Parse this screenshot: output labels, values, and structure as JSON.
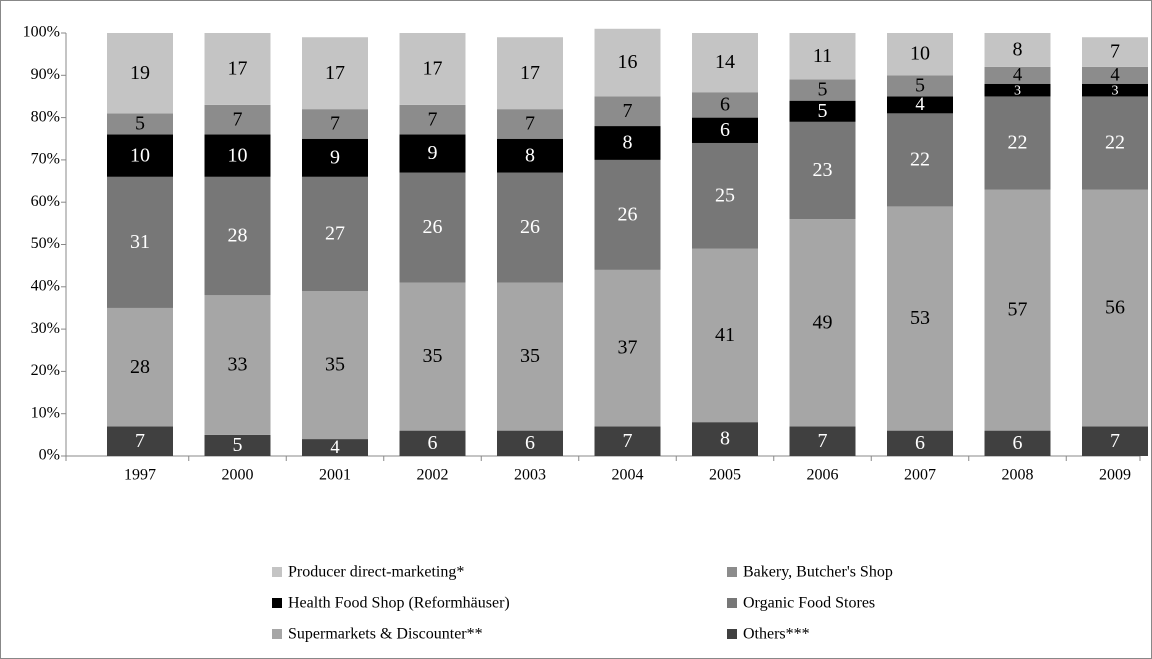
{
  "chart_data": {
    "type": "stacked_bar",
    "categories": [
      "1997",
      "2000",
      "2001",
      "2002",
      "2003",
      "2004",
      "2005",
      "2006",
      "2007",
      "2008",
      "2009"
    ],
    "series": [
      {
        "name": "Others***",
        "color": "#404040",
        "label_color": "#ffffff",
        "values": [
          7,
          5,
          4,
          6,
          6,
          7,
          8,
          7,
          6,
          6,
          7
        ]
      },
      {
        "name": "Supermarkets & Discounter**",
        "color": "#a6a6a6",
        "label_color": "#000000",
        "values": [
          28,
          33,
          35,
          35,
          35,
          37,
          41,
          49,
          53,
          57,
          56
        ]
      },
      {
        "name": "Organic Food Stores",
        "color": "#777777",
        "label_color": "#ffffff",
        "values": [
          31,
          28,
          27,
          26,
          26,
          26,
          25,
          23,
          22,
          22,
          22
        ]
      },
      {
        "name": "Health Food Shop (Reformhäuser)",
        "color": "#000000",
        "label_color": "#ffffff",
        "values": [
          10,
          10,
          9,
          9,
          8,
          8,
          6,
          5,
          4,
          3,
          3
        ]
      },
      {
        "name": "Bakery, Butcher's Shop",
        "color": "#8c8c8c",
        "label_color": "#000000",
        "values": [
          5,
          7,
          7,
          7,
          7,
          7,
          6,
          5,
          5,
          4,
          4
        ]
      },
      {
        "name": "Producer direct-marketing*",
        "color": "#c4c4c4",
        "label_color": "#000000",
        "values": [
          19,
          17,
          17,
          17,
          17,
          16,
          14,
          11,
          10,
          8,
          7
        ]
      }
    ],
    "ylim": [
      0,
      100
    ],
    "yticks": [
      {
        "value": 0,
        "label": "0%"
      },
      {
        "value": 10,
        "label": "10%"
      },
      {
        "value": 20,
        "label": "20%"
      },
      {
        "value": 30,
        "label": "30%"
      },
      {
        "value": 40,
        "label": "40%"
      },
      {
        "value": 50,
        "label": "50%"
      },
      {
        "value": 60,
        "label": "60%"
      },
      {
        "value": 70,
        "label": "70%"
      },
      {
        "value": 80,
        "label": "80%"
      },
      {
        "value": 90,
        "label": "90%"
      },
      {
        "value": 100,
        "label": "100%"
      }
    ],
    "grid": false
  }
}
